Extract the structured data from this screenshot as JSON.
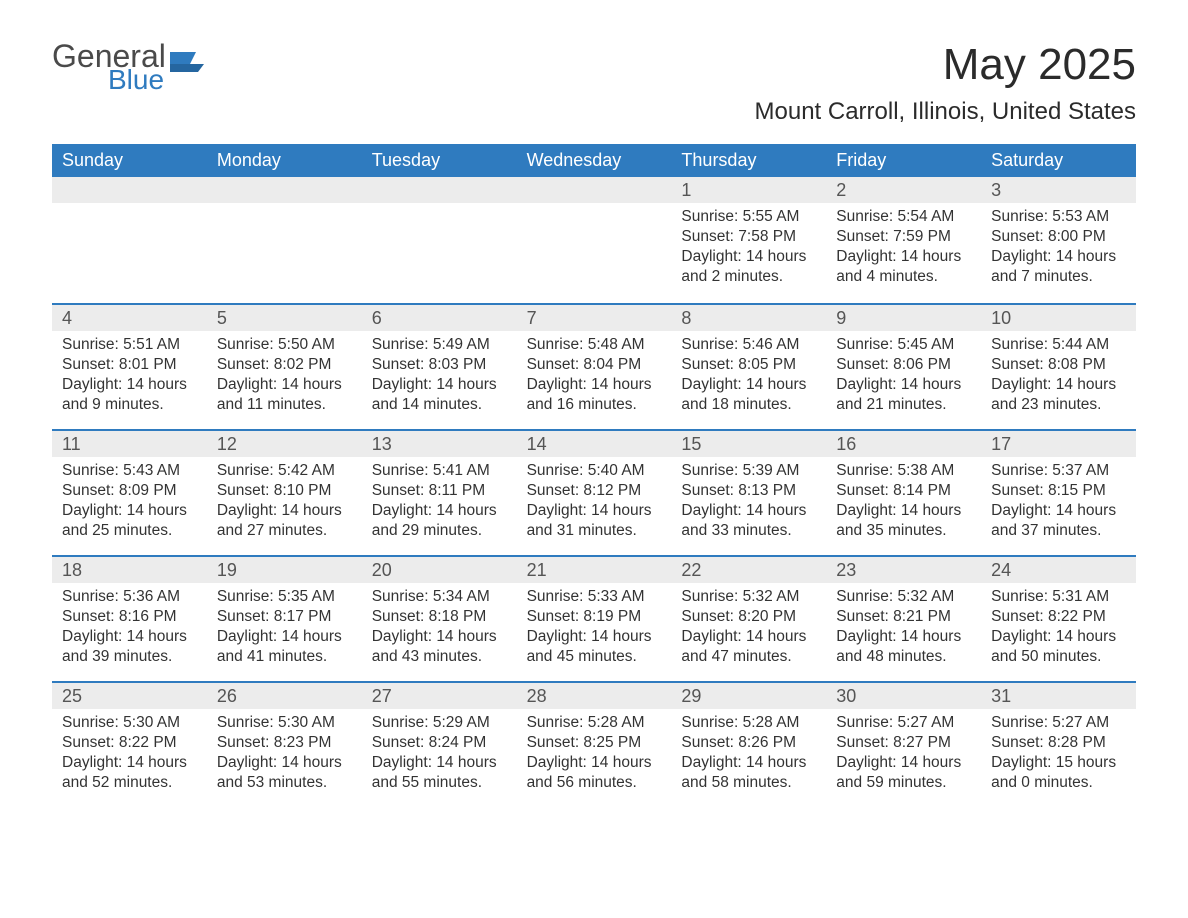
{
  "brand": {
    "word1": "General",
    "word2": "Blue"
  },
  "header": {
    "title": "May 2025",
    "location": "Mount Carroll, Illinois, United States"
  },
  "colors": {
    "header_bg": "#2f7bbf",
    "header_text": "#ffffff",
    "day_bar_bg": "#ececec",
    "rule": "#2f7bbf",
    "body_text": "#333333",
    "page_bg": "#ffffff"
  },
  "weekdays": [
    "Sunday",
    "Monday",
    "Tuesday",
    "Wednesday",
    "Thursday",
    "Friday",
    "Saturday"
  ],
  "weeks": [
    [
      null,
      null,
      null,
      null,
      {
        "n": "1",
        "sunrise": "Sunrise: 5:55 AM",
        "sunset": "Sunset: 7:58 PM",
        "day1": "Daylight: 14 hours",
        "day2": "and 2 minutes."
      },
      {
        "n": "2",
        "sunrise": "Sunrise: 5:54 AM",
        "sunset": "Sunset: 7:59 PM",
        "day1": "Daylight: 14 hours",
        "day2": "and 4 minutes."
      },
      {
        "n": "3",
        "sunrise": "Sunrise: 5:53 AM",
        "sunset": "Sunset: 8:00 PM",
        "day1": "Daylight: 14 hours",
        "day2": "and 7 minutes."
      }
    ],
    [
      {
        "n": "4",
        "sunrise": "Sunrise: 5:51 AM",
        "sunset": "Sunset: 8:01 PM",
        "day1": "Daylight: 14 hours",
        "day2": "and 9 minutes."
      },
      {
        "n": "5",
        "sunrise": "Sunrise: 5:50 AM",
        "sunset": "Sunset: 8:02 PM",
        "day1": "Daylight: 14 hours",
        "day2": "and 11 minutes."
      },
      {
        "n": "6",
        "sunrise": "Sunrise: 5:49 AM",
        "sunset": "Sunset: 8:03 PM",
        "day1": "Daylight: 14 hours",
        "day2": "and 14 minutes."
      },
      {
        "n": "7",
        "sunrise": "Sunrise: 5:48 AM",
        "sunset": "Sunset: 8:04 PM",
        "day1": "Daylight: 14 hours",
        "day2": "and 16 minutes."
      },
      {
        "n": "8",
        "sunrise": "Sunrise: 5:46 AM",
        "sunset": "Sunset: 8:05 PM",
        "day1": "Daylight: 14 hours",
        "day2": "and 18 minutes."
      },
      {
        "n": "9",
        "sunrise": "Sunrise: 5:45 AM",
        "sunset": "Sunset: 8:06 PM",
        "day1": "Daylight: 14 hours",
        "day2": "and 21 minutes."
      },
      {
        "n": "10",
        "sunrise": "Sunrise: 5:44 AM",
        "sunset": "Sunset: 8:08 PM",
        "day1": "Daylight: 14 hours",
        "day2": "and 23 minutes."
      }
    ],
    [
      {
        "n": "11",
        "sunrise": "Sunrise: 5:43 AM",
        "sunset": "Sunset: 8:09 PM",
        "day1": "Daylight: 14 hours",
        "day2": "and 25 minutes."
      },
      {
        "n": "12",
        "sunrise": "Sunrise: 5:42 AM",
        "sunset": "Sunset: 8:10 PM",
        "day1": "Daylight: 14 hours",
        "day2": "and 27 minutes."
      },
      {
        "n": "13",
        "sunrise": "Sunrise: 5:41 AM",
        "sunset": "Sunset: 8:11 PM",
        "day1": "Daylight: 14 hours",
        "day2": "and 29 minutes."
      },
      {
        "n": "14",
        "sunrise": "Sunrise: 5:40 AM",
        "sunset": "Sunset: 8:12 PM",
        "day1": "Daylight: 14 hours",
        "day2": "and 31 minutes."
      },
      {
        "n": "15",
        "sunrise": "Sunrise: 5:39 AM",
        "sunset": "Sunset: 8:13 PM",
        "day1": "Daylight: 14 hours",
        "day2": "and 33 minutes."
      },
      {
        "n": "16",
        "sunrise": "Sunrise: 5:38 AM",
        "sunset": "Sunset: 8:14 PM",
        "day1": "Daylight: 14 hours",
        "day2": "and 35 minutes."
      },
      {
        "n": "17",
        "sunrise": "Sunrise: 5:37 AM",
        "sunset": "Sunset: 8:15 PM",
        "day1": "Daylight: 14 hours",
        "day2": "and 37 minutes."
      }
    ],
    [
      {
        "n": "18",
        "sunrise": "Sunrise: 5:36 AM",
        "sunset": "Sunset: 8:16 PM",
        "day1": "Daylight: 14 hours",
        "day2": "and 39 minutes."
      },
      {
        "n": "19",
        "sunrise": "Sunrise: 5:35 AM",
        "sunset": "Sunset: 8:17 PM",
        "day1": "Daylight: 14 hours",
        "day2": "and 41 minutes."
      },
      {
        "n": "20",
        "sunrise": "Sunrise: 5:34 AM",
        "sunset": "Sunset: 8:18 PM",
        "day1": "Daylight: 14 hours",
        "day2": "and 43 minutes."
      },
      {
        "n": "21",
        "sunrise": "Sunrise: 5:33 AM",
        "sunset": "Sunset: 8:19 PM",
        "day1": "Daylight: 14 hours",
        "day2": "and 45 minutes."
      },
      {
        "n": "22",
        "sunrise": "Sunrise: 5:32 AM",
        "sunset": "Sunset: 8:20 PM",
        "day1": "Daylight: 14 hours",
        "day2": "and 47 minutes."
      },
      {
        "n": "23",
        "sunrise": "Sunrise: 5:32 AM",
        "sunset": "Sunset: 8:21 PM",
        "day1": "Daylight: 14 hours",
        "day2": "and 48 minutes."
      },
      {
        "n": "24",
        "sunrise": "Sunrise: 5:31 AM",
        "sunset": "Sunset: 8:22 PM",
        "day1": "Daylight: 14 hours",
        "day2": "and 50 minutes."
      }
    ],
    [
      {
        "n": "25",
        "sunrise": "Sunrise: 5:30 AM",
        "sunset": "Sunset: 8:22 PM",
        "day1": "Daylight: 14 hours",
        "day2": "and 52 minutes."
      },
      {
        "n": "26",
        "sunrise": "Sunrise: 5:30 AM",
        "sunset": "Sunset: 8:23 PM",
        "day1": "Daylight: 14 hours",
        "day2": "and 53 minutes."
      },
      {
        "n": "27",
        "sunrise": "Sunrise: 5:29 AM",
        "sunset": "Sunset: 8:24 PM",
        "day1": "Daylight: 14 hours",
        "day2": "and 55 minutes."
      },
      {
        "n": "28",
        "sunrise": "Sunrise: 5:28 AM",
        "sunset": "Sunset: 8:25 PM",
        "day1": "Daylight: 14 hours",
        "day2": "and 56 minutes."
      },
      {
        "n": "29",
        "sunrise": "Sunrise: 5:28 AM",
        "sunset": "Sunset: 8:26 PM",
        "day1": "Daylight: 14 hours",
        "day2": "and 58 minutes."
      },
      {
        "n": "30",
        "sunrise": "Sunrise: 5:27 AM",
        "sunset": "Sunset: 8:27 PM",
        "day1": "Daylight: 14 hours",
        "day2": "and 59 minutes."
      },
      {
        "n": "31",
        "sunrise": "Sunrise: 5:27 AM",
        "sunset": "Sunset: 8:28 PM",
        "day1": "Daylight: 15 hours",
        "day2": "and 0 minutes."
      }
    ]
  ]
}
